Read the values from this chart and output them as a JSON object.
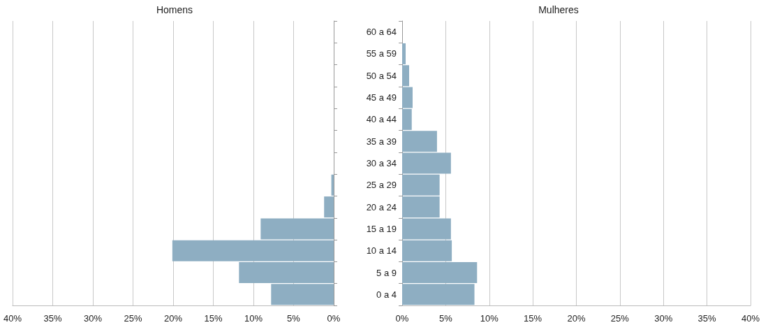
{
  "chart_data": [
    {
      "type": "bar",
      "title": "Homens",
      "orientation": "horizontal",
      "categories": [
        null,
        null,
        null,
        null,
        null,
        null,
        null,
        null,
        null,
        null,
        null,
        null,
        null
      ],
      "values": [
        0,
        0,
        0,
        0,
        0,
        0,
        0,
        0.3,
        1.2,
        9.1,
        20.1,
        11.8,
        7.8
      ],
      "color": "#8eaec2",
      "xlim": [
        40,
        0
      ],
      "xticks": [
        {
          "value": 40,
          "label": "40%"
        },
        {
          "value": 35,
          "label": "35%"
        },
        {
          "value": 30,
          "label": "30%"
        },
        {
          "value": 25,
          "label": "25%"
        },
        {
          "value": 20,
          "label": "20%"
        },
        {
          "value": 15,
          "label": "15%"
        },
        {
          "value": 10,
          "label": "10%"
        },
        {
          "value": 5,
          "label": "5%"
        },
        {
          "value": 0,
          "label": "0%"
        }
      ],
      "grid": "x",
      "tick_labels": "x"
    },
    {
      "type": "bar",
      "title": "Mulheres",
      "orientation": "horizontal",
      "categories": [
        "60 a 64",
        "55 a 59",
        "50 a 54",
        "45 a 49",
        "40 a 44",
        "35 a 39",
        "30 a 34",
        "25 a 29",
        "20 a 24",
        "15 a 19",
        "10 a 14",
        "5 a 9",
        "0 a 4"
      ],
      "values": [
        0,
        0.4,
        0.8,
        1.2,
        1.1,
        4.0,
        5.6,
        4.3,
        4.3,
        5.6,
        5.7,
        8.6,
        8.3
      ],
      "color": "#8eaec2",
      "xlim": [
        0,
        40
      ],
      "xticks": [
        {
          "value": 0,
          "label": "0%"
        },
        {
          "value": 5,
          "label": "5%"
        },
        {
          "value": 10,
          "label": "10%"
        },
        {
          "value": 15,
          "label": "15%"
        },
        {
          "value": 20,
          "label": "20%"
        },
        {
          "value": 25,
          "label": "25%"
        },
        {
          "value": 30,
          "label": "30%"
        },
        {
          "value": 35,
          "label": "35%"
        },
        {
          "value": 40,
          "label": "40%"
        }
      ],
      "grid": "x"
    }
  ]
}
